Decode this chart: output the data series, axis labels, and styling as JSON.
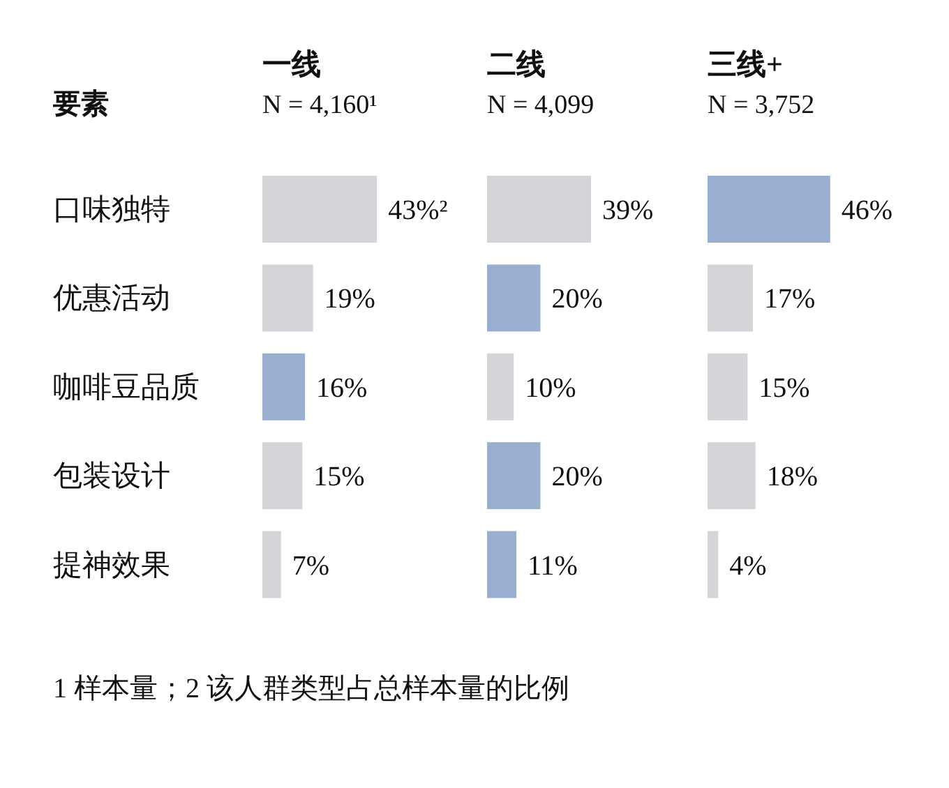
{
  "chart_data": [
    {
      "type": "bar",
      "orientation": "horizontal",
      "title": "一线",
      "subtitle": "N = 4,160¹",
      "ylabel": "要素",
      "tick_labels": "y",
      "categories": [
        "口味独特",
        "优惠活动",
        "咖啡豆品质",
        "包装设计",
        "提神效果"
      ],
      "values": [
        43,
        19,
        16,
        15,
        7
      ],
      "colors": [
        "#d4d5d8",
        "#d4d5d8",
        "#9aaecf",
        "#d4d5d8",
        "#d4d5d8"
      ],
      "value_labels": [
        "43%²",
        "19%",
        "16%",
        "15%",
        "7%"
      ],
      "annotations": [
        "1 样本量；2 该人群类型占总样本量的比例"
      ]
    },
    {
      "type": "bar",
      "orientation": "horizontal",
      "title": "二线",
      "subtitle": "N = 4,099",
      "tick_labels": false,
      "categories": [
        null,
        null,
        null,
        null,
        null
      ],
      "values": [
        39,
        20,
        10,
        20,
        11
      ],
      "colors": [
        "#d4d5d8",
        "#9aaecf",
        "#d4d5d8",
        "#9aaecf",
        "#9aaecf"
      ],
      "value_labels": [
        "39%",
        "20%",
        "10%",
        "20%",
        "11%"
      ]
    },
    {
      "type": "bar",
      "orientation": "horizontal",
      "title": "三线+",
      "subtitle": "N = 3,752",
      "tick_labels": false,
      "categories": [
        null,
        null,
        null,
        null,
        null
      ],
      "values": [
        46,
        17,
        15,
        18,
        4
      ],
      "colors": [
        "#9aaecf",
        "#d4d5d8",
        "#d4d5d8",
        "#d4d5d8",
        "#d4d5d8"
      ],
      "value_labels": [
        "46%",
        "17%",
        "15%",
        "18%",
        "4%"
      ]
    }
  ]
}
